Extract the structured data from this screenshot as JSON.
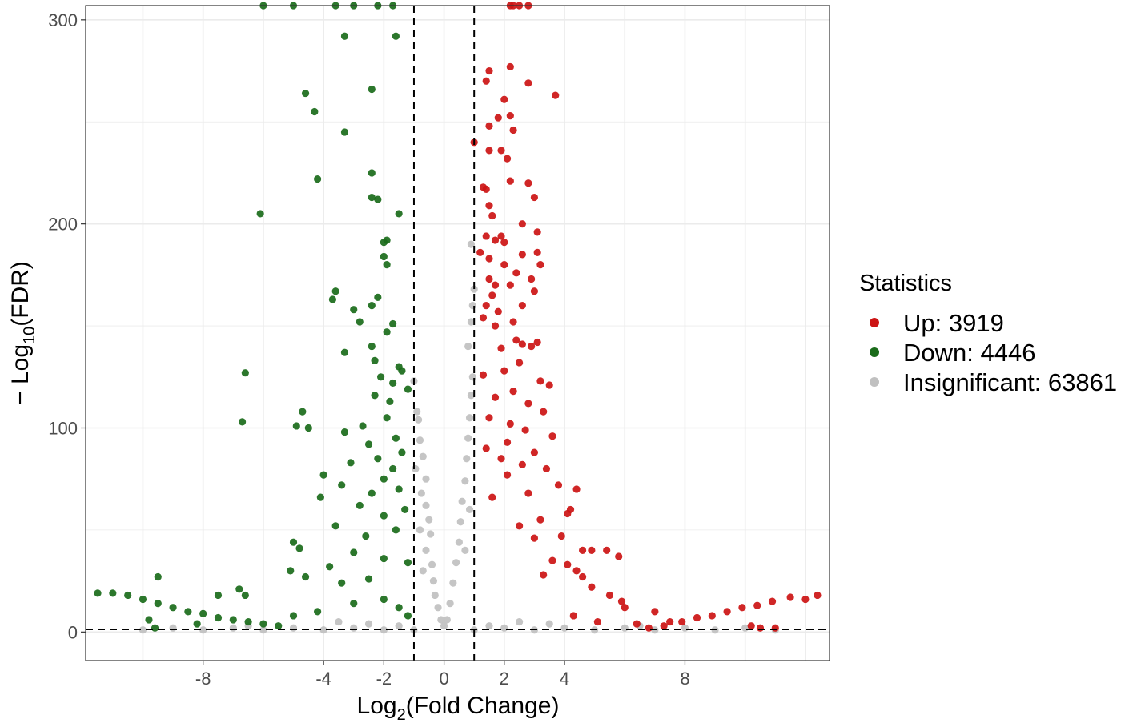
{
  "chart_data": {
    "type": "scatter",
    "subtype": "volcano",
    "xlabel": {
      "prefix": "Log",
      "sub": "2",
      "suffix": "(Fold Change)"
    },
    "ylabel": {
      "prefix": "− Log",
      "sub": "10",
      "suffix": "(FDR)"
    },
    "xlim": [
      -11.9,
      12.8
    ],
    "ylim": [
      -14,
      307
    ],
    "x_ticks": [
      -8,
      -4,
      -2,
      0,
      2,
      4,
      8
    ],
    "x_tick_labels": [
      "-8",
      "-4",
      "-2",
      "0",
      "2",
      "4",
      "8"
    ],
    "y_ticks": [
      0,
      100,
      200,
      300
    ],
    "y_tick_labels": [
      "0",
      "100",
      "200",
      "300"
    ],
    "grid": true,
    "thresholds": {
      "log2fc": [
        -1,
        1
      ],
      "neg_log10_fdr": 1.3
    },
    "legend": {
      "title": "Statistics",
      "position": "right",
      "entries": [
        {
          "label": "Up: 3919",
          "color": "#cc1414"
        },
        {
          "label": "Down: 4446",
          "color": "#1a6b1a"
        },
        {
          "label": "Insignificant: 63861",
          "color": "#c0c0c0"
        }
      ]
    },
    "series": [
      {
        "name": "Up",
        "color": "#cc1414",
        "points": [
          [
            2.2,
            307
          ],
          [
            2.5,
            307
          ],
          [
            2.8,
            307
          ],
          [
            2.3,
            307
          ],
          [
            1.5,
            275
          ],
          [
            2.2,
            277
          ],
          [
            2.8,
            269
          ],
          [
            3.7,
            263
          ],
          [
            1.4,
            270
          ],
          [
            2.0,
            261
          ],
          [
            1.8,
            252
          ],
          [
            2.2,
            253
          ],
          [
            1.5,
            248
          ],
          [
            2.3,
            246
          ],
          [
            1.0,
            240
          ],
          [
            1.5,
            236
          ],
          [
            1.9,
            236
          ],
          [
            2.1,
            232
          ],
          [
            1.3,
            218
          ],
          [
            1.4,
            217
          ],
          [
            2.2,
            221
          ],
          [
            2.8,
            220
          ],
          [
            3.0,
            213
          ],
          [
            1.5,
            209
          ],
          [
            1.6,
            204
          ],
          [
            2.6,
            200
          ],
          [
            3.1,
            196
          ],
          [
            1.4,
            194
          ],
          [
            1.7,
            192
          ],
          [
            1.9,
            194
          ],
          [
            2.0,
            191
          ],
          [
            1.2,
            186
          ],
          [
            1.5,
            183
          ],
          [
            2.0,
            180
          ],
          [
            2.6,
            185
          ],
          [
            3.1,
            186
          ],
          [
            3.2,
            180
          ],
          [
            2.4,
            176
          ],
          [
            2.9,
            173
          ],
          [
            1.5,
            173
          ],
          [
            1.7,
            170
          ],
          [
            2.2,
            170
          ],
          [
            3.0,
            167
          ],
          [
            1.6,
            165
          ],
          [
            1.4,
            160
          ],
          [
            2.6,
            160
          ],
          [
            1.8,
            157
          ],
          [
            1.3,
            154
          ],
          [
            2.3,
            152
          ],
          [
            1.7,
            150
          ],
          [
            2.4,
            143
          ],
          [
            2.6,
            141
          ],
          [
            2.9,
            140
          ],
          [
            3.1,
            142
          ],
          [
            1.9,
            139
          ],
          [
            2.5,
            132
          ],
          [
            2.0,
            128
          ],
          [
            1.3,
            126
          ],
          [
            3.2,
            123
          ],
          [
            3.5,
            121
          ],
          [
            2.3,
            118
          ],
          [
            1.7,
            115
          ],
          [
            2.8,
            112
          ],
          [
            3.3,
            108
          ],
          [
            1.5,
            105
          ],
          [
            2.2,
            102
          ],
          [
            2.7,
            99
          ],
          [
            3.6,
            96
          ],
          [
            2.1,
            93
          ],
          [
            1.4,
            90
          ],
          [
            3.0,
            88
          ],
          [
            1.9,
            85
          ],
          [
            2.6,
            82
          ],
          [
            3.4,
            80
          ],
          [
            2.1,
            77
          ],
          [
            3.8,
            72
          ],
          [
            4.4,
            70
          ],
          [
            2.8,
            68
          ],
          [
            1.6,
            66
          ],
          [
            4.2,
            60
          ],
          [
            4.1,
            58
          ],
          [
            3.2,
            55
          ],
          [
            2.5,
            52
          ],
          [
            3.9,
            47
          ],
          [
            3.0,
            46
          ],
          [
            4.6,
            40
          ],
          [
            4.9,
            40
          ],
          [
            5.4,
            40
          ],
          [
            5.8,
            37
          ],
          [
            3.6,
            35
          ],
          [
            4.1,
            33
          ],
          [
            4.4,
            30
          ],
          [
            3.3,
            28
          ],
          [
            4.6,
            27
          ],
          [
            4.9,
            22
          ],
          [
            5.5,
            18
          ],
          [
            5.9,
            15
          ],
          [
            6.0,
            12
          ],
          [
            4.3,
            8
          ],
          [
            5.1,
            5
          ],
          [
            6.4,
            4
          ],
          [
            7.0,
            10
          ],
          [
            7.5,
            5
          ],
          [
            7.9,
            5
          ],
          [
            8.4,
            7
          ],
          [
            8.9,
            8
          ],
          [
            9.4,
            10
          ],
          [
            9.9,
            12
          ],
          [
            10.4,
            13
          ],
          [
            10.9,
            15
          ],
          [
            11.5,
            17
          ],
          [
            12.0,
            16
          ],
          [
            12.4,
            18
          ],
          [
            10.2,
            3
          ],
          [
            10.5,
            2
          ],
          [
            11.0,
            2
          ],
          [
            6.8,
            2
          ],
          [
            7.3,
            3
          ]
        ]
      },
      {
        "name": "Down",
        "color": "#1a6b1a",
        "points": [
          [
            -6.0,
            307
          ],
          [
            -5.0,
            307
          ],
          [
            -3.6,
            307
          ],
          [
            -3.0,
            307
          ],
          [
            -2.2,
            307
          ],
          [
            -1.7,
            307
          ],
          [
            -3.3,
            292
          ],
          [
            -1.6,
            292
          ],
          [
            -4.6,
            264
          ],
          [
            -2.4,
            266
          ],
          [
            -4.3,
            255
          ],
          [
            -3.3,
            245
          ],
          [
            -2.4,
            225
          ],
          [
            -4.2,
            222
          ],
          [
            -2.4,
            213
          ],
          [
            -2.2,
            212
          ],
          [
            -6.1,
            205
          ],
          [
            -1.5,
            205
          ],
          [
            -1.9,
            192
          ],
          [
            -2.0,
            191
          ],
          [
            -2.0,
            184
          ],
          [
            -1.9,
            180
          ],
          [
            -3.6,
            167
          ],
          [
            -3.7,
            163
          ],
          [
            -2.2,
            164
          ],
          [
            -2.4,
            160
          ],
          [
            -3.0,
            158
          ],
          [
            -2.8,
            152
          ],
          [
            -1.7,
            151
          ],
          [
            -1.9,
            147
          ],
          [
            -2.4,
            140
          ],
          [
            -3.3,
            137
          ],
          [
            -2.3,
            133
          ],
          [
            -1.5,
            130
          ],
          [
            -1.4,
            128
          ],
          [
            -6.6,
            127
          ],
          [
            -2.1,
            125
          ],
          [
            -1.7,
            122
          ],
          [
            -1.2,
            119
          ],
          [
            -2.3,
            116
          ],
          [
            -1.8,
            113
          ],
          [
            -4.7,
            108
          ],
          [
            -4.9,
            101
          ],
          [
            -6.7,
            103
          ],
          [
            -4.5,
            100
          ],
          [
            -1.9,
            105
          ],
          [
            -2.7,
            101
          ],
          [
            -3.3,
            98
          ],
          [
            -1.6,
            95
          ],
          [
            -2.5,
            92
          ],
          [
            -1.4,
            88
          ],
          [
            -2.2,
            85
          ],
          [
            -3.1,
            83
          ],
          [
            -1.7,
            80
          ],
          [
            -4.0,
            77
          ],
          [
            -2.0,
            75
          ],
          [
            -3.4,
            72
          ],
          [
            -1.5,
            70
          ],
          [
            -2.4,
            68
          ],
          [
            -4.1,
            66
          ],
          [
            -2.8,
            62
          ],
          [
            -1.3,
            60
          ],
          [
            -2.0,
            57
          ],
          [
            -3.6,
            52
          ],
          [
            -1.6,
            50
          ],
          [
            -2.6,
            47
          ],
          [
            -5.0,
            44
          ],
          [
            -4.8,
            41
          ],
          [
            -3.0,
            39
          ],
          [
            -2.0,
            36
          ],
          [
            -1.2,
            34
          ],
          [
            -3.8,
            32
          ],
          [
            -5.1,
            30
          ],
          [
            -4.6,
            27
          ],
          [
            -2.5,
            26
          ],
          [
            -3.4,
            24
          ],
          [
            -6.8,
            21
          ],
          [
            -6.6,
            18
          ],
          [
            -7.5,
            18
          ],
          [
            -9.5,
            27
          ],
          [
            -10.5,
            18
          ],
          [
            -11.0,
            19
          ],
          [
            -11.5,
            19
          ],
          [
            -10.0,
            16
          ],
          [
            -9.5,
            14
          ],
          [
            -9.0,
            12
          ],
          [
            -8.5,
            10
          ],
          [
            -8.0,
            9
          ],
          [
            -7.5,
            7
          ],
          [
            -7.0,
            6
          ],
          [
            -6.5,
            5
          ],
          [
            -6.0,
            4
          ],
          [
            -5.5,
            3
          ],
          [
            -9.8,
            6
          ],
          [
            -9.6,
            2
          ],
          [
            -8.2,
            4
          ],
          [
            -5.0,
            8
          ],
          [
            -4.2,
            10
          ],
          [
            -3.0,
            14
          ],
          [
            -2.0,
            16
          ],
          [
            -1.5,
            12
          ],
          [
            -1.2,
            8
          ]
        ]
      },
      {
        "name": "Insignificant",
        "color": "#c0c0c0",
        "points": [
          [
            -1.0,
            123
          ],
          [
            -0.9,
            108
          ],
          [
            -0.85,
            104
          ],
          [
            -0.8,
            94
          ],
          [
            -0.7,
            86
          ],
          [
            -0.6,
            75
          ],
          [
            -0.75,
            68
          ],
          [
            -0.6,
            62
          ],
          [
            -0.5,
            55
          ],
          [
            -0.45,
            48
          ],
          [
            -0.6,
            40
          ],
          [
            -0.4,
            33
          ],
          [
            -0.35,
            25
          ],
          [
            -0.3,
            18
          ],
          [
            -0.2,
            12
          ],
          [
            -0.1,
            6
          ],
          [
            0.0,
            3
          ],
          [
            0.1,
            6
          ],
          [
            0.2,
            14
          ],
          [
            0.3,
            24
          ],
          [
            0.4,
            34
          ],
          [
            0.5,
            44
          ],
          [
            0.55,
            54
          ],
          [
            0.6,
            64
          ],
          [
            0.7,
            74
          ],
          [
            0.75,
            85
          ],
          [
            0.8,
            95
          ],
          [
            0.85,
            105
          ],
          [
            0.9,
            116
          ],
          [
            0.95,
            125
          ],
          [
            0.8,
            140
          ],
          [
            0.9,
            152
          ],
          [
            0.95,
            160
          ],
          [
            1.0,
            168
          ],
          [
            0.9,
            190
          ],
          [
            -0.95,
            80
          ],
          [
            -0.8,
            50
          ],
          [
            -0.7,
            30
          ],
          [
            0.7,
            40
          ],
          [
            0.85,
            60
          ],
          [
            -10.0,
            1
          ],
          [
            -9.0,
            2
          ],
          [
            -8.0,
            1
          ],
          [
            -7.0,
            2
          ],
          [
            -6.0,
            1
          ],
          [
            -5.0,
            2
          ],
          [
            -4.0,
            1
          ],
          [
            -3.0,
            2
          ],
          [
            -2.0,
            1
          ],
          [
            -1.0,
            1
          ],
          [
            1.0,
            1
          ],
          [
            2.0,
            2
          ],
          [
            3.0,
            1
          ],
          [
            4.0,
            2
          ],
          [
            5.0,
            1
          ],
          [
            6.0,
            2
          ],
          [
            7.0,
            1
          ],
          [
            8.0,
            2
          ],
          [
            9.0,
            1
          ],
          [
            10.0,
            2
          ],
          [
            11.0,
            1
          ],
          [
            -3.5,
            5
          ],
          [
            -2.5,
            4
          ],
          [
            3.5,
            4
          ],
          [
            2.5,
            5
          ],
          [
            -1.5,
            3
          ],
          [
            1.5,
            3
          ],
          [
            6.5,
            3
          ],
          [
            -6.5,
            3
          ]
        ]
      }
    ]
  }
}
